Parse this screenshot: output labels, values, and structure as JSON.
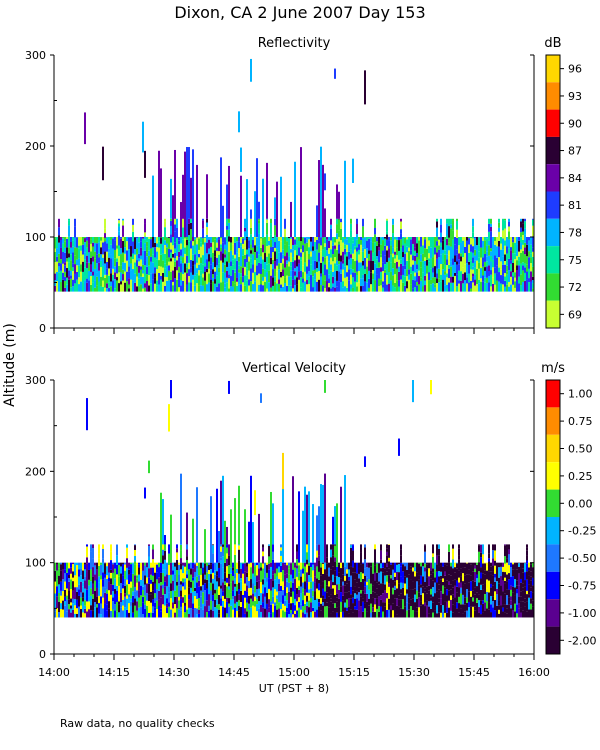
{
  "title": "Dixon, CA  2 June 2007  Day 153",
  "footnote": "Raw data, no quality checks",
  "chart_data": [
    {
      "type": "heatmap",
      "title": "Reflectivity",
      "ylabel": "Altitude (m)",
      "xlabel": "UT  (PST + 8)",
      "x_ticks": [
        "14:00",
        "14:15",
        "14:30",
        "14:45",
        "15:00",
        "15:15",
        "15:30",
        "15:45",
        "16:00"
      ],
      "x_range": [
        "14:00",
        "16:00"
      ],
      "y_ticks": [
        0,
        100,
        200,
        300
      ],
      "ylim": [
        0,
        300
      ],
      "colorbar": {
        "unit": "dB",
        "labels": [
          "96",
          "93",
          "90",
          "87",
          "84",
          "81",
          "78",
          "75",
          "72",
          "69"
        ],
        "colors": [
          "#ffd700",
          "#ff8c00",
          "#ff0000",
          "#2a0033",
          "#6a00a8",
          "#1e3cff",
          "#00b4ff",
          "#00e6a0",
          "#32dc32",
          "#c8ff32"
        ]
      }
    },
    {
      "type": "heatmap",
      "title": "Vertical Velocity",
      "ylabel": "Altitude (m)",
      "xlabel": "UT  (PST + 8)",
      "x_ticks": [
        "14:00",
        "14:15",
        "14:30",
        "14:45",
        "15:00",
        "15:15",
        "15:30",
        "15:45",
        "16:00"
      ],
      "x_range": [
        "14:00",
        "16:00"
      ],
      "y_ticks": [
        0,
        100,
        200,
        300
      ],
      "ylim": [
        0,
        300
      ],
      "colorbar": {
        "unit": "m/s",
        "labels": [
          "1.00",
          "0.75",
          "0.50",
          "0.25",
          "0.00",
          "-0.25",
          "-0.50",
          "-0.75",
          "-1.00",
          "-2.00"
        ],
        "colors": [
          "#ff0000",
          "#ff8c00",
          "#ffd700",
          "#ffff00",
          "#32dc32",
          "#00b4ff",
          "#1e78ff",
          "#0000ff",
          "#5a0090",
          "#2a0033"
        ]
      }
    }
  ]
}
